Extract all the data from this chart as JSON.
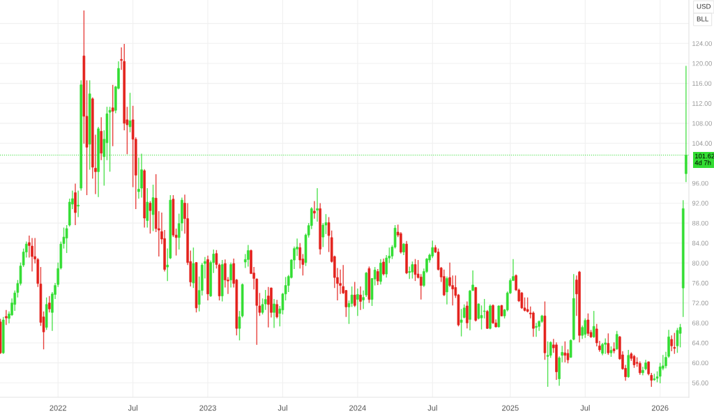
{
  "chart_data": {
    "type": "candlestick",
    "x": [
      "2021-08-16",
      "2021-08-23",
      "2021-08-30",
      "2021-09-06",
      "2021-09-13",
      "2021-09-20",
      "2021-09-27",
      "2021-10-04",
      "2021-10-11",
      "2021-10-18",
      "2021-10-25",
      "2021-11-01",
      "2021-11-08",
      "2021-11-15",
      "2021-11-22",
      "2021-11-29",
      "2021-12-06",
      "2021-12-13",
      "2021-12-20",
      "2021-12-27",
      "2022-01-03",
      "2022-01-10",
      "2022-01-17",
      "2022-01-24",
      "2022-01-31",
      "2022-02-07",
      "2022-02-14",
      "2022-02-21",
      "2022-02-28",
      "2022-03-07",
      "2022-03-14",
      "2022-03-21",
      "2022-03-28",
      "2022-04-04",
      "2022-04-11",
      "2022-04-18",
      "2022-04-25",
      "2022-05-02",
      "2022-05-09",
      "2022-05-16",
      "2022-05-23",
      "2022-05-30",
      "2022-06-06",
      "2022-06-13",
      "2022-06-20",
      "2022-06-27",
      "2022-07-04",
      "2022-07-11",
      "2022-07-18",
      "2022-07-25",
      "2022-08-01",
      "2022-08-08",
      "2022-08-15",
      "2022-08-22",
      "2022-08-29",
      "2022-09-05",
      "2022-09-12",
      "2022-09-19",
      "2022-09-26",
      "2022-10-03",
      "2022-10-10",
      "2022-10-17",
      "2022-10-24",
      "2022-10-31",
      "2022-11-07",
      "2022-11-14",
      "2022-11-21",
      "2022-11-28",
      "2022-12-05",
      "2022-12-12",
      "2022-12-19",
      "2022-12-26",
      "2023-01-02",
      "2023-01-09",
      "2023-01-16",
      "2023-01-23",
      "2023-01-30",
      "2023-02-06",
      "2023-02-13",
      "2023-02-20",
      "2023-02-27",
      "2023-03-06",
      "2023-03-13",
      "2023-03-20",
      "2023-03-27",
      "2023-04-03",
      "2023-04-10",
      "2023-04-17",
      "2023-04-24",
      "2023-05-01",
      "2023-05-08",
      "2023-05-15",
      "2023-05-22",
      "2023-05-29",
      "2023-06-05",
      "2023-06-12",
      "2023-06-19",
      "2023-06-26",
      "2023-07-03",
      "2023-07-10",
      "2023-07-17",
      "2023-07-24",
      "2023-07-31",
      "2023-08-07",
      "2023-08-14",
      "2023-08-21",
      "2023-08-28",
      "2023-09-04",
      "2023-09-11",
      "2023-09-18",
      "2023-09-25",
      "2023-10-02",
      "2023-10-09",
      "2023-10-16",
      "2023-10-23",
      "2023-10-30",
      "2023-11-06",
      "2023-11-13",
      "2023-11-20",
      "2023-11-27",
      "2023-12-04",
      "2023-12-11",
      "2023-12-18",
      "2023-12-25",
      "2024-01-01",
      "2024-01-08",
      "2024-01-15",
      "2024-01-22",
      "2024-01-29",
      "2024-02-05",
      "2024-02-12",
      "2024-02-19",
      "2024-02-26",
      "2024-03-04",
      "2024-03-11",
      "2024-03-18",
      "2024-03-25",
      "2024-04-01",
      "2024-04-08",
      "2024-04-15",
      "2024-04-22",
      "2024-04-29",
      "2024-05-06",
      "2024-05-13",
      "2024-05-20",
      "2024-05-27",
      "2024-06-03",
      "2024-06-10",
      "2024-06-17",
      "2024-06-24",
      "2024-07-01",
      "2024-07-08",
      "2024-07-15",
      "2024-07-22",
      "2024-07-29",
      "2024-08-05",
      "2024-08-12",
      "2024-08-19",
      "2024-08-26",
      "2024-09-02",
      "2024-09-09",
      "2024-09-16",
      "2024-09-23",
      "2024-09-30",
      "2024-10-07",
      "2024-10-14",
      "2024-10-21",
      "2024-10-28",
      "2024-11-04",
      "2024-11-11",
      "2024-11-18",
      "2024-11-25",
      "2024-12-02",
      "2024-12-09",
      "2024-12-16",
      "2024-12-23",
      "2024-12-30",
      "2025-01-06",
      "2025-01-13",
      "2025-01-20",
      "2025-01-27",
      "2025-02-03",
      "2025-02-10",
      "2025-02-17",
      "2025-02-24",
      "2025-03-03",
      "2025-03-10",
      "2025-03-17",
      "2025-03-24",
      "2025-03-31",
      "2025-04-07",
      "2025-04-14",
      "2025-04-21",
      "2025-04-28",
      "2025-05-05",
      "2025-05-12",
      "2025-05-19",
      "2025-05-26",
      "2025-06-02",
      "2025-06-09",
      "2025-06-16",
      "2025-06-23",
      "2025-06-30",
      "2025-07-07",
      "2025-07-14",
      "2025-07-21",
      "2025-07-28",
      "2025-08-04",
      "2025-08-11",
      "2025-08-18",
      "2025-08-25",
      "2025-09-01",
      "2025-09-08",
      "2025-09-15",
      "2025-09-22",
      "2025-09-29",
      "2025-10-06",
      "2025-10-13",
      "2025-10-20",
      "2025-10-27",
      "2025-11-03",
      "2025-11-10",
      "2025-11-17",
      "2025-11-24",
      "2025-12-01",
      "2025-12-08",
      "2025-12-15",
      "2025-12-22",
      "2025-12-29",
      "2026-01-05",
      "2026-01-12",
      "2026-01-19",
      "2026-01-26",
      "2026-02-02",
      "2026-02-09",
      "2026-02-16",
      "2026-02-23",
      "2026-03-02",
      "2026-03-09"
    ],
    "ohlc": [
      [
        68.2,
        68.8,
        61.8,
        62.0
      ],
      [
        62.0,
        69.2,
        61.8,
        68.6
      ],
      [
        69.3,
        70.6,
        67.6,
        69.0
      ],
      [
        68.9,
        70.3,
        67.9,
        69.8
      ],
      [
        69.6,
        72.9,
        69.4,
        72.0
      ],
      [
        71.7,
        74.5,
        70.4,
        74.0
      ],
      [
        74.1,
        76.6,
        73.1,
        75.9
      ],
      [
        75.9,
        80.1,
        75.5,
        79.4
      ],
      [
        79.6,
        82.9,
        79.2,
        82.2
      ],
      [
        82.2,
        84.3,
        81.1,
        83.8
      ],
      [
        84.1,
        85.5,
        81.1,
        83.5
      ],
      [
        83.4,
        85.0,
        78.3,
        81.3
      ],
      [
        81.3,
        85.0,
        79.9,
        80.8
      ],
      [
        80.7,
        81.0,
        75.2,
        75.9
      ],
      [
        75.8,
        79.2,
        67.4,
        68.1
      ],
      [
        69.2,
        70.3,
        62.7,
        66.2
      ],
      [
        67.1,
        73.1,
        66.6,
        71.7
      ],
      [
        72.0,
        73.4,
        70.1,
        70.8
      ],
      [
        70.1,
        74.2,
        66.4,
        73.8
      ],
      [
        73.7,
        76.0,
        72.8,
        75.5
      ],
      [
        75.7,
        80.1,
        75.2,
        78.9
      ],
      [
        79.0,
        84.3,
        78.7,
        83.8
      ],
      [
        83.9,
        87.1,
        82.9,
        85.2
      ],
      [
        85.0,
        87.6,
        82.0,
        86.9
      ],
      [
        87.6,
        92.9,
        87.3,
        92.2
      ],
      [
        91.8,
        94.5,
        90.8,
        92.9
      ],
      [
        94.1,
        95.9,
        87.6,
        90.1
      ],
      [
        91.4,
        94.5,
        89.2,
        91.6
      ],
      [
        95.0,
        116.6,
        94.5,
        115.7
      ],
      [
        121.5,
        130.6,
        103.9,
        109.4
      ],
      [
        109.4,
        116.6,
        93.6,
        103.2
      ],
      [
        103.8,
        116.6,
        98.7,
        113.9
      ],
      [
        112.9,
        113.2,
        96.9,
        99.2
      ],
      [
        99.0,
        105.7,
        93.8,
        98.3
      ],
      [
        98.3,
        107.3,
        93.2,
        106.9
      ],
      [
        106.4,
        109.2,
        100.6,
        102.0
      ],
      [
        101.3,
        106.6,
        95.5,
        104.8
      ],
      [
        104.1,
        111.3,
        100.6,
        109.9
      ],
      [
        110.2,
        111.3,
        98.3,
        110.6
      ],
      [
        111.1,
        115.7,
        103.4,
        110.4
      ],
      [
        110.6,
        115.5,
        110.0,
        115.3
      ],
      [
        115.0,
        120.4,
        114.8,
        119.0
      ],
      [
        120.8,
        123.2,
        118.7,
        120.6
      ],
      [
        120.4,
        123.9,
        106.6,
        108.0
      ],
      [
        108.7,
        111.3,
        101.8,
        107.7
      ],
      [
        107.3,
        114.1,
        106.2,
        108.5
      ],
      [
        108.7,
        111.5,
        95.2,
        104.8
      ],
      [
        104.8,
        105.2,
        90.8,
        97.6
      ],
      [
        94.3,
        101.1,
        92.9,
        94.8
      ],
      [
        95.0,
        101.9,
        93.1,
        98.7
      ],
      [
        98.5,
        98.8,
        87.1,
        89.0
      ],
      [
        88.5,
        95.0,
        87.1,
        92.2
      ],
      [
        92.0,
        92.4,
        85.9,
        90.5
      ],
      [
        89.7,
        95.7,
        86.4,
        93.1
      ],
      [
        93.0,
        97.8,
        86.2,
        86.9
      ],
      [
        86.9,
        90.4,
        81.3,
        86.6
      ],
      [
        86.3,
        90.1,
        83.8,
        84.8
      ],
      [
        84.9,
        86.6,
        78.3,
        78.7
      ],
      [
        79.2,
        82.9,
        76.4,
        79.6
      ],
      [
        81.0,
        93.6,
        80.8,
        92.6
      ],
      [
        92.8,
        93.6,
        85.2,
        85.6
      ],
      [
        85.6,
        86.9,
        81.5,
        85.1
      ],
      [
        85.1,
        89.9,
        82.7,
        87.9
      ],
      [
        88.0,
        93.1,
        86.4,
        92.6
      ],
      [
        92.0,
        93.7,
        85.9,
        88.9
      ],
      [
        88.9,
        92.0,
        79.6,
        80.1
      ],
      [
        80.3,
        82.5,
        75.3,
        76.2
      ],
      [
        76.0,
        83.1,
        75.0,
        79.9
      ],
      [
        80.1,
        80.2,
        70.1,
        71.0
      ],
      [
        71.7,
        77.3,
        70.3,
        74.5
      ],
      [
        74.5,
        80.0,
        73.5,
        79.6
      ],
      [
        79.9,
        81.2,
        76.9,
        80.3
      ],
      [
        80.7,
        81.5,
        72.5,
        73.8
      ],
      [
        73.4,
        80.5,
        73.2,
        80.1
      ],
      [
        80.1,
        82.7,
        78.0,
        81.8
      ],
      [
        81.9,
        82.6,
        78.9,
        79.7
      ],
      [
        79.6,
        79.9,
        72.5,
        73.4
      ],
      [
        73.4,
        80.6,
        72.3,
        79.7
      ],
      [
        79.9,
        80.7,
        75.1,
        76.6
      ],
      [
        76.6,
        77.2,
        73.8,
        76.4
      ],
      [
        76.6,
        80.1,
        75.1,
        79.7
      ],
      [
        79.9,
        80.9,
        75.1,
        75.9
      ],
      [
        76.6,
        76.8,
        65.5,
        66.9
      ],
      [
        66.9,
        70.4,
        64.5,
        69.2
      ],
      [
        69.4,
        75.9,
        69.1,
        75.7
      ],
      [
        80.2,
        81.8,
        79.0,
        80.7
      ],
      [
        80.7,
        83.6,
        79.3,
        82.5
      ],
      [
        82.5,
        82.7,
        77.8,
        77.9
      ],
      [
        78.0,
        79.2,
        74.7,
        76.9
      ],
      [
        76.8,
        76.9,
        63.6,
        71.5
      ],
      [
        71.4,
        74.0,
        69.4,
        70.1
      ],
      [
        70.1,
        72.9,
        69.7,
        71.7
      ],
      [
        71.8,
        74.6,
        70.6,
        72.7
      ],
      [
        73.4,
        75.2,
        67.1,
        71.7
      ],
      [
        75.0,
        75.1,
        69.1,
        70.1
      ],
      [
        70.1,
        72.8,
        67.0,
        71.8
      ],
      [
        71.7,
        72.6,
        68.9,
        69.2
      ],
      [
        69.9,
        71.4,
        67.3,
        70.8
      ],
      [
        70.6,
        74.0,
        69.7,
        73.8
      ],
      [
        73.8,
        77.2,
        72.5,
        75.5
      ],
      [
        75.5,
        77.6,
        74.2,
        77.3
      ],
      [
        77.1,
        80.8,
        76.9,
        80.6
      ],
      [
        80.6,
        83.3,
        78.8,
        82.9
      ],
      [
        82.8,
        84.9,
        81.4,
        83.2
      ],
      [
        83.1,
        84.0,
        78.9,
        80.6
      ],
      [
        80.8,
        81.8,
        77.5,
        79.7
      ],
      [
        80.1,
        85.9,
        79.4,
        85.6
      ],
      [
        85.6,
        88.0,
        85.1,
        87.5
      ],
      [
        87.5,
        91.2,
        86.8,
        90.9
      ],
      [
        90.4,
        92.4,
        88.9,
        90.0
      ],
      [
        90.6,
        95.0,
        88.3,
        90.9
      ],
      [
        90.9,
        92.0,
        81.7,
        82.8
      ],
      [
        85.2,
        88.0,
        83.2,
        87.6
      ],
      [
        87.6,
        89.8,
        85.8,
        88.1
      ],
      [
        88.1,
        89.2,
        82.2,
        85.5
      ],
      [
        85.1,
        86.5,
        80.1,
        80.3
      ],
      [
        81.3,
        81.5,
        75.0,
        77.1
      ],
      [
        77.1,
        79.0,
        72.5,
        75.9
      ],
      [
        75.9,
        78.7,
        73.8,
        75.5
      ],
      [
        75.3,
        79.6,
        73.8,
        74.0
      ],
      [
        74.5,
        74.6,
        69.2,
        71.2
      ],
      [
        71.2,
        72.5,
        67.8,
        71.9
      ],
      [
        71.9,
        75.3,
        71.2,
        73.6
      ],
      [
        73.6,
        76.2,
        71.2,
        71.5
      ],
      [
        72.7,
        74.9,
        69.4,
        73.7
      ],
      [
        73.6,
        75.3,
        70.6,
        72.3
      ],
      [
        72.6,
        74.5,
        70.8,
        73.1
      ],
      [
        73.6,
        78.2,
        73.2,
        78.0
      ],
      [
        78.9,
        79.3,
        72.0,
        72.7
      ],
      [
        72.7,
        77.0,
        71.4,
        76.9
      ],
      [
        76.8,
        79.2,
        75.5,
        78.6
      ],
      [
        78.3,
        78.8,
        75.6,
        76.4
      ],
      [
        76.3,
        80.8,
        75.7,
        80.0
      ],
      [
        80.2,
        80.9,
        77.5,
        77.8
      ],
      [
        77.8,
        81.6,
        77.1,
        81.0
      ],
      [
        81.0,
        83.1,
        80.0,
        81.4
      ],
      [
        81.4,
        83.6,
        80.8,
        83.2
      ],
      [
        83.2,
        87.6,
        82.9,
        87.0
      ],
      [
        86.2,
        87.7,
        85.2,
        85.6
      ],
      [
        85.9,
        86.2,
        81.9,
        82.2
      ],
      [
        82.2,
        84.0,
        81.6,
        83.8
      ],
      [
        83.8,
        84.4,
        77.8,
        78.0
      ],
      [
        78.1,
        79.3,
        76.8,
        78.3
      ],
      [
        78.2,
        80.3,
        76.9,
        79.7
      ],
      [
        79.7,
        80.8,
        76.4,
        77.7
      ],
      [
        77.8,
        80.6,
        76.9,
        77.1
      ],
      [
        77.2,
        77.8,
        72.7,
        75.5
      ],
      [
        75.5,
        78.9,
        75.2,
        78.3
      ],
      [
        78.3,
        81.0,
        78.0,
        80.8
      ],
      [
        80.6,
        81.9,
        80.1,
        81.6
      ],
      [
        81.4,
        84.5,
        81.0,
        83.1
      ],
      [
        83.1,
        83.6,
        82.0,
        82.2
      ],
      [
        82.2,
        82.9,
        78.5,
        78.7
      ],
      [
        79.0,
        79.2,
        76.2,
        77.2
      ],
      [
        77.3,
        78.7,
        73.4,
        73.6
      ],
      [
        74.2,
        77.3,
        71.7,
        76.9
      ],
      [
        77.1,
        80.1,
        75.2,
        75.5
      ],
      [
        75.5,
        77.5,
        71.5,
        74.8
      ],
      [
        75.1,
        77.5,
        73.0,
        73.5
      ],
      [
        73.6,
        73.8,
        67.3,
        67.6
      ],
      [
        68.1,
        70.8,
        65.3,
        68.6
      ],
      [
        69.1,
        71.7,
        68.9,
        71.0
      ],
      [
        71.4,
        72.3,
        66.9,
        68.0
      ],
      [
        68.7,
        74.6,
        66.5,
        74.4
      ],
      [
        74.5,
        78.5,
        74.4,
        75.6
      ],
      [
        75.1,
        75.2,
        68.3,
        68.5
      ],
      [
        68.9,
        71.9,
        68.7,
        71.8
      ],
      [
        69.0,
        71.5,
        66.7,
        69.5
      ],
      [
        70.3,
        72.8,
        68.9,
        70.4
      ],
      [
        70.3,
        70.6,
        66.8,
        66.9
      ],
      [
        66.9,
        71.7,
        66.7,
        71.4
      ],
      [
        71.5,
        71.7,
        67.8,
        68.0
      ],
      [
        68.0,
        68.7,
        67.1,
        67.2
      ],
      [
        67.2,
        71.5,
        67.1,
        71.4
      ],
      [
        71.5,
        71.6,
        69.3,
        69.4
      ],
      [
        69.4,
        70.8,
        68.9,
        70.6
      ],
      [
        70.6,
        74.3,
        70.3,
        74.0
      ],
      [
        74.0,
        76.9,
        73.8,
        76.5
      ],
      [
        76.5,
        80.8,
        76.4,
        77.3
      ],
      [
        77.5,
        77.7,
        74.4,
        74.6
      ],
      [
        74.6,
        74.9,
        72.2,
        72.4
      ],
      [
        74.0,
        74.2,
        70.8,
        71.0
      ],
      [
        71.0,
        73.1,
        70.3,
        70.5
      ],
      [
        70.7,
        73.1,
        70.1,
        70.3
      ],
      [
        70.0,
        71.3,
        68.9,
        69.8
      ],
      [
        70.0,
        70.3,
        65.2,
        66.9
      ],
      [
        67.1,
        68.0,
        65.2,
        67.3
      ],
      [
        67.3,
        68.5,
        66.4,
        68.3
      ],
      [
        68.3,
        69.6,
        68.0,
        69.4
      ],
      [
        69.4,
        72.3,
        60.6,
        62.0
      ],
      [
        61.3,
        64.3,
        55.2,
        61.5
      ],
      [
        61.5,
        64.3,
        61.0,
        64.1
      ],
      [
        63.6,
        64.8,
        62.0,
        63.0
      ],
      [
        63.6,
        64.1,
        56.6,
        58.2
      ],
      [
        56.8,
        61.3,
        55.4,
        61.0
      ],
      [
        61.5,
        63.4,
        60.1,
        62.1
      ],
      [
        62.0,
        64.3,
        60.1,
        61.5
      ],
      [
        61.9,
        62.7,
        59.9,
        60.6
      ],
      [
        61.1,
        64.7,
        61.0,
        64.5
      ],
      [
        64.7,
        77.8,
        64.5,
        72.9
      ],
      [
        76.6,
        77.5,
        69.4,
        73.8
      ],
      [
        78.2,
        78.4,
        64.1,
        65.5
      ],
      [
        65.5,
        67.5,
        64.8,
        67.1
      ],
      [
        65.7,
        68.9,
        65.0,
        68.5
      ],
      [
        68.6,
        69.9,
        65.4,
        65.9
      ],
      [
        66.1,
        66.6,
        65.0,
        65.2
      ],
      [
        65.2,
        70.4,
        65.0,
        67.3
      ],
      [
        66.8,
        67.8,
        63.3,
        64.0
      ],
      [
        63.4,
        64.4,
        62.2,
        62.6
      ],
      [
        61.9,
        64.0,
        61.5,
        63.7
      ],
      [
        63.7,
        64.9,
        61.8,
        64.0
      ],
      [
        63.9,
        65.9,
        61.6,
        62.0
      ],
      [
        62.0,
        63.3,
        61.2,
        62.5
      ],
      [
        62.8,
        64.1,
        61.9,
        62.4
      ],
      [
        62.8,
        66.4,
        62.6,
        65.7
      ],
      [
        65.2,
        65.4,
        60.6,
        60.8
      ],
      [
        61.6,
        62.3,
        58.6,
        58.8
      ],
      [
        58.9,
        59.6,
        56.4,
        57.2
      ],
      [
        57.2,
        62.6,
        57.0,
        61.5
      ],
      [
        61.8,
        62.1,
        60.4,
        60.9
      ],
      [
        61.3,
        61.6,
        59.0,
        59.6
      ],
      [
        60.1,
        61.1,
        59.2,
        59.9
      ],
      [
        59.9,
        60.3,
        57.6,
        58.0
      ],
      [
        58.0,
        59.2,
        57.5,
        58.5
      ],
      [
        58.8,
        60.6,
        58.5,
        60.0
      ],
      [
        60.2,
        60.3,
        57.5,
        57.8
      ],
      [
        57.5,
        58.0,
        55.2,
        56.5
      ],
      [
        56.6,
        57.8,
        56.4,
        56.8
      ],
      [
        56.9,
        58.3,
        56.1,
        57.2
      ],
      [
        57.3,
        60.0,
        55.9,
        59.2
      ],
      [
        58.9,
        61.6,
        58.5,
        59.4
      ],
      [
        59.4,
        62.2,
        58.9,
        61.1
      ],
      [
        61.3,
        66.6,
        61.0,
        65.2
      ],
      [
        64.7,
        65.5,
        62.3,
        63.4
      ],
      [
        63.1,
        66.0,
        61.8,
        62.9
      ],
      [
        63.4,
        67.0,
        62.0,
        66.5
      ],
      [
        65.9,
        67.8,
        63.1,
        67.1
      ],
      [
        75.0,
        92.6,
        69.2,
        90.9
      ],
      [
        97.9,
        119.5,
        96.2,
        101.62
      ]
    ],
    "colors": [
      "#e3211c",
      "#33dd33",
      "#e3211c",
      "#33dd33",
      "#33dd33",
      "#33dd33",
      "#33dd33",
      "#33dd33",
      "#33dd33",
      "#33dd33",
      "#e3211c",
      "#e3211c",
      "#e3211c",
      "#e3211c",
      "#e3211c",
      "#e3211c",
      "#33dd33",
      "#e3211c",
      "#33dd33",
      "#33dd33",
      "#33dd33",
      "#33dd33",
      "#33dd33",
      "#33dd33",
      "#33dd33",
      "#33dd33",
      "#e3211c",
      "#33dd33",
      "#33dd33",
      "#e3211c",
      "#e3211c",
      "#33dd33",
      "#e3211c",
      "#e3211c",
      "#33dd33",
      "#e3211c",
      "#33dd33",
      "#33dd33",
      "#33dd33",
      "#e3211c",
      "#33dd33",
      "#33dd33",
      "#e3211c",
      "#e3211c",
      "#e3211c",
      "#33dd33",
      "#e3211c",
      "#e3211c",
      "#33dd33",
      "#33dd33",
      "#e3211c",
      "#33dd33",
      "#e3211c",
      "#33dd33",
      "#e3211c",
      "#e3211c",
      "#e3211c",
      "#e3211c",
      "#33dd33",
      "#33dd33",
      "#e3211c",
      "#e3211c",
      "#33dd33",
      "#33dd33",
      "#e3211c",
      "#e3211c",
      "#e3211c",
      "#33dd33",
      "#e3211c",
      "#33dd33",
      "#33dd33",
      "#33dd33",
      "#e3211c",
      "#33dd33",
      "#33dd33",
      "#e3211c",
      "#e3211c",
      "#33dd33",
      "#e3211c",
      "#e3211c",
      "#33dd33",
      "#e3211c",
      "#e3211c",
      "#33dd33",
      "#33dd33",
      "#33dd33",
      "#33dd33",
      "#e3211c",
      "#e3211c",
      "#e3211c",
      "#e3211c",
      "#33dd33",
      "#33dd33",
      "#e3211c",
      "#e3211c",
      "#33dd33",
      "#e3211c",
      "#33dd33",
      "#33dd33",
      "#33dd33",
      "#33dd33",
      "#33dd33",
      "#33dd33",
      "#33dd33",
      "#e3211c",
      "#e3211c",
      "#33dd33",
      "#33dd33",
      "#33dd33",
      "#e3211c",
      "#33dd33",
      "#e3211c",
      "#33dd33",
      "#33dd33",
      "#e3211c",
      "#e3211c",
      "#e3211c",
      "#e3211c",
      "#e3211c",
      "#e3211c",
      "#e3211c",
      "#33dd33",
      "#33dd33",
      "#e3211c",
      "#33dd33",
      "#e3211c",
      "#33dd33",
      "#33dd33",
      "#e3211c",
      "#33dd33",
      "#33dd33",
      "#e3211c",
      "#33dd33",
      "#e3211c",
      "#33dd33",
      "#33dd33",
      "#33dd33",
      "#33dd33",
      "#e3211c",
      "#e3211c",
      "#33dd33",
      "#e3211c",
      "#33dd33",
      "#33dd33",
      "#e3211c",
      "#e3211c",
      "#e3211c",
      "#33dd33",
      "#33dd33",
      "#33dd33",
      "#33dd33",
      "#e3211c",
      "#e3211c",
      "#e3211c",
      "#e3211c",
      "#33dd33",
      "#e3211c",
      "#e3211c",
      "#e3211c",
      "#e3211c",
      "#33dd33",
      "#33dd33",
      "#e3211c",
      "#33dd33",
      "#33dd33",
      "#e3211c",
      "#33dd33",
      "#33dd33",
      "#33dd33",
      "#e3211c",
      "#33dd33",
      "#e3211c",
      "#e3211c",
      "#33dd33",
      "#e3211c",
      "#33dd33",
      "#33dd33",
      "#33dd33",
      "#33dd33",
      "#e3211c",
      "#e3211c",
      "#e3211c",
      "#e3211c",
      "#e3211c",
      "#e3211c",
      "#e3211c",
      "#33dd33",
      "#33dd33",
      "#33dd33",
      "#e3211c",
      "#33dd33",
      "#33dd33",
      "#e3211c",
      "#e3211c",
      "#33dd33",
      "#33dd33",
      "#e3211c",
      "#e3211c",
      "#33dd33",
      "#33dd33",
      "#e3211c",
      "#e3211c",
      "#33dd33",
      "#33dd33",
      "#e3211c",
      "#e3211c",
      "#33dd33",
      "#e3211c",
      "#e3211c",
      "#33dd33",
      "#33dd33",
      "#e3211c",
      "#33dd33",
      "#e3211c",
      "#33dd33",
      "#e3211c",
      "#e3211c",
      "#e3211c",
      "#33dd33",
      "#e3211c",
      "#e3211c",
      "#e3211c",
      "#e3211c",
      "#33dd33",
      "#33dd33",
      "#e3211c",
      "#e3211c",
      "#33dd33",
      "#33dd33",
      "#33dd33",
      "#33dd33",
      "#33dd33",
      "#33dd33",
      "#e3211c",
      "#e3211c",
      "#33dd33",
      "#33dd33",
      "#33dd33",
      "#33dd33"
    ],
    "xlim": [
      "2021-08-15",
      "2026-03-16"
    ],
    "xticks": [
      {
        "value": "2022-01-03",
        "label": "2022"
      },
      {
        "value": "2022-07-04",
        "label": "Jul"
      },
      {
        "value": "2023-01-02",
        "label": "2023"
      },
      {
        "value": "2023-07-03",
        "label": "Jul"
      },
      {
        "value": "2024-01-01",
        "label": "2024"
      },
      {
        "value": "2024-07-01",
        "label": "Jul"
      },
      {
        "value": "2025-01-06",
        "label": "2025"
      },
      {
        "value": "2025-07-07",
        "label": "Jul"
      },
      {
        "value": "2026-01-05",
        "label": "2026"
      }
    ],
    "ylim": [
      53.1,
      132.7
    ],
    "yticks": [
      {
        "value": 56,
        "label": "56.00"
      },
      {
        "value": 60,
        "label": "60.00"
      },
      {
        "value": 64,
        "label": "64.00"
      },
      {
        "value": 68,
        "label": "68.00"
      },
      {
        "value": 72,
        "label": "72.00"
      },
      {
        "value": 76,
        "label": "76.00"
      },
      {
        "value": 80,
        "label": "80.00"
      },
      {
        "value": 84,
        "label": "84.00"
      },
      {
        "value": 88,
        "label": "88.00"
      },
      {
        "value": 92,
        "label": "92.00"
      },
      {
        "value": 96,
        "label": "96.00"
      },
      {
        "value": 100,
        "label": null
      },
      {
        "value": 104,
        "label": "104.00"
      },
      {
        "value": 108,
        "label": "108.00"
      },
      {
        "value": 112,
        "label": "112.00"
      },
      {
        "value": 116,
        "label": "116.00"
      },
      {
        "value": 120,
        "label": "120.00"
      },
      {
        "value": 124,
        "label": "124.00"
      },
      {
        "value": 128,
        "label": null
      }
    ],
    "ylabel": "USD\nBLL",
    "ref_lines": [
      {
        "axis": "y",
        "value": 101.62,
        "label": "101.62\n4d 7h",
        "color": "#33dd33",
        "line_style": "dotted"
      }
    ],
    "grid": true
  }
}
